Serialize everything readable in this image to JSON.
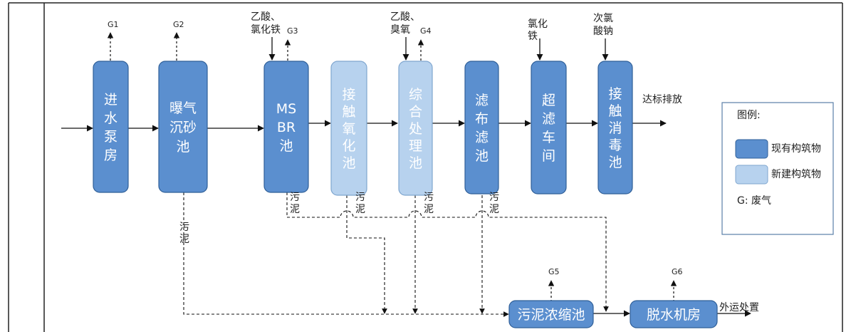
{
  "colors": {
    "existing": "#5b8fcf",
    "existing_stroke": "#2f5f98",
    "new": "#b7d2ee",
    "new_stroke": "#7fa6cf",
    "line": "#111111",
    "frame": "#222222"
  },
  "units": [
    {
      "id": "intake",
      "lines": [
        "进",
        "水",
        "泵",
        "房"
      ],
      "type": "existing"
    },
    {
      "id": "grit",
      "lines": [
        "曝气",
        "沉砂",
        "池"
      ],
      "type": "existing"
    },
    {
      "id": "msbr",
      "lines": [
        "MS",
        "BR",
        "池"
      ],
      "type": "existing"
    },
    {
      "id": "contact-ox",
      "lines": [
        "接",
        "触",
        "氧",
        "化",
        "池"
      ],
      "type": "new"
    },
    {
      "id": "integrated",
      "lines": [
        "综",
        "合",
        "处",
        "理",
        "池"
      ],
      "type": "new"
    },
    {
      "id": "cloth-filter",
      "lines": [
        "滤",
        "布",
        "滤",
        "池"
      ],
      "type": "existing"
    },
    {
      "id": "uf",
      "lines": [
        "超",
        "滤",
        "车",
        "间"
      ],
      "type": "existing"
    },
    {
      "id": "disinfect",
      "lines": [
        "接",
        "触",
        "消",
        "毒",
        "池"
      ],
      "type": "existing"
    },
    {
      "id": "thickener",
      "lines": [
        "污泥浓缩池"
      ],
      "type": "existing"
    },
    {
      "id": "dewater",
      "lines": [
        "脱水机房"
      ],
      "type": "existing"
    }
  ],
  "gas": [
    {
      "id": "g1",
      "label": "G1"
    },
    {
      "id": "g2",
      "label": "G2"
    },
    {
      "id": "g3",
      "label": "G3"
    },
    {
      "id": "g4",
      "label": "G4"
    },
    {
      "id": "g5",
      "label": "G5"
    },
    {
      "id": "g6",
      "label": "G6"
    }
  ],
  "chemicals": [
    {
      "id": "msbr-chem",
      "lines": [
        "乙酸、",
        "氯化铁"
      ]
    },
    {
      "id": "integrated-chem",
      "lines": [
        "乙酸、",
        "臭氧"
      ]
    },
    {
      "id": "uf-chem",
      "lines": [
        "氯化",
        "铁"
      ]
    },
    {
      "id": "disinfect-chem",
      "lines": [
        "次氯",
        "酸钠"
      ]
    }
  ],
  "sludge_labels": [
    {
      "id": "s-grit",
      "lines": [
        "污",
        "泥"
      ]
    },
    {
      "id": "s-msbr",
      "lines": [
        "污",
        "泥"
      ]
    },
    {
      "id": "s-contact",
      "lines": [
        "污",
        "泥"
      ]
    },
    {
      "id": "s-integrated",
      "lines": [
        "污",
        "泥"
      ]
    },
    {
      "id": "s-filter",
      "lines": [
        "污",
        "泥"
      ]
    }
  ],
  "discharge": "达标排放",
  "offsite": "外运处置",
  "legend": {
    "title": "图例:",
    "existing": "现有构筑物",
    "new": "新建构筑物",
    "gas": "G: 废气"
  }
}
